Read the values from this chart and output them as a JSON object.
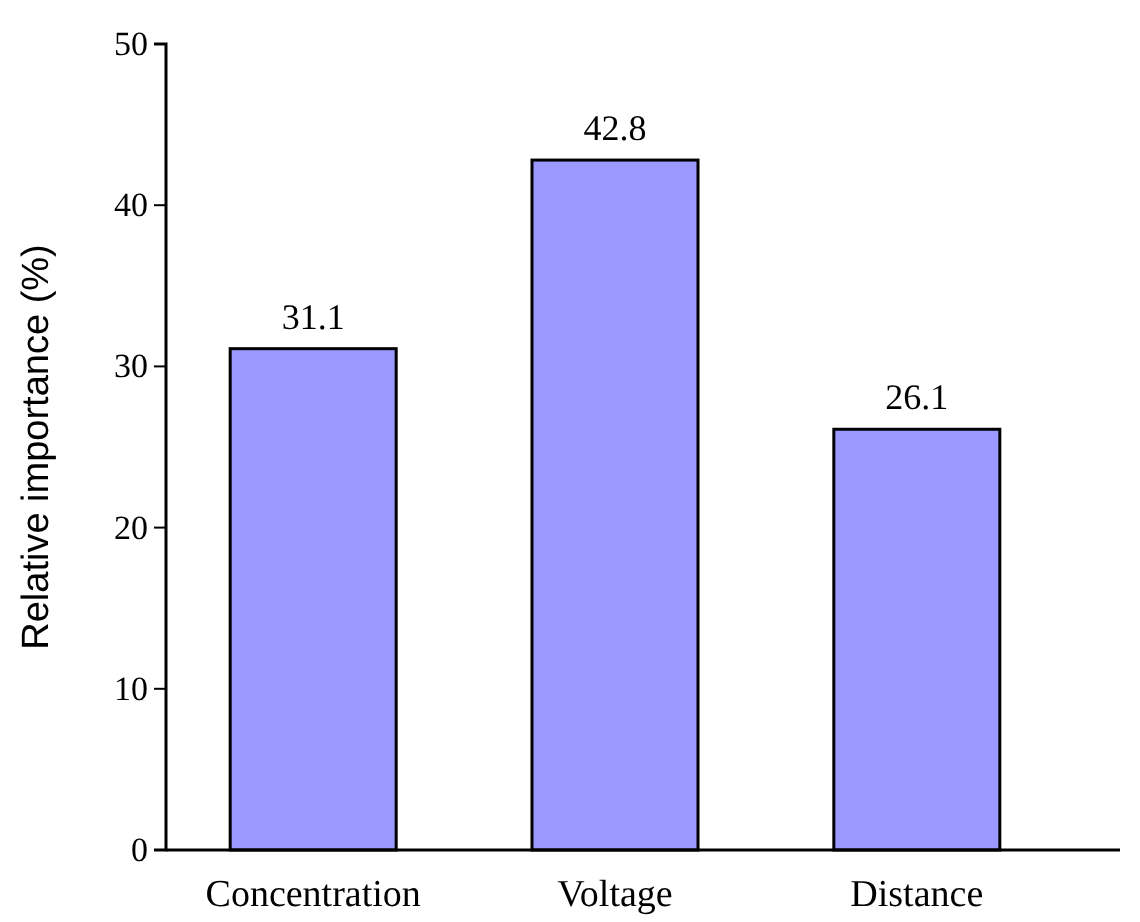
{
  "chart_data": {
    "type": "bar",
    "ylabel": "Relative importance (%)",
    "categories": [
      "Concentration",
      "Voltage",
      "Distance"
    ],
    "values": [
      31.1,
      42.8,
      26.1
    ],
    "color": "#9999ff",
    "ylim": [
      0,
      50
    ],
    "yticks": [
      0,
      10,
      20,
      30,
      40,
      50
    ],
    "data_labels": true,
    "grid": false
  }
}
